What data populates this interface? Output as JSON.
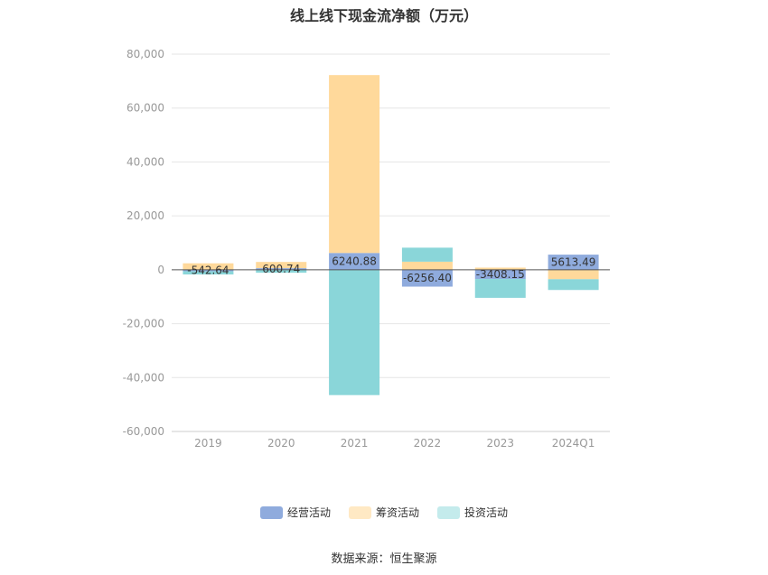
{
  "chart_data": {
    "type": "bar",
    "stacked": true,
    "title": "线上线下现金流净额（万元）",
    "categories": [
      "2019",
      "2020",
      "2021",
      "2022",
      "2023",
      "2024Q1"
    ],
    "series": [
      {
        "name": "经营活动",
        "color": "#8fabdd",
        "values": [
          -542.64,
          600.74,
          6240.88,
          -6256.4,
          -3408.15,
          5613.49
        ]
      },
      {
        "name": "筹资活动",
        "color": "#ffd99b",
        "values": [
          2400,
          2300,
          66000,
          3000,
          800,
          -3500
        ]
      },
      {
        "name": "投资活动",
        "color": "#8ad6d9",
        "values": [
          -1200,
          -1100,
          -46500,
          5200,
          -7000,
          -4000
        ]
      }
    ],
    "data_labels": [
      "-542.64",
      "600.74",
      "6240.88",
      "-6256.40",
      "-3408.15",
      "5613.49"
    ],
    "ylim": [
      -60000,
      80000
    ],
    "yticks": [
      80000,
      60000,
      40000,
      20000,
      0,
      -20000,
      -40000,
      -60000
    ],
    "ytick_labels": [
      "80,000",
      "60,000",
      "40,000",
      "20,000",
      "0",
      "-20,000",
      "-40,000",
      "-60,000"
    ],
    "grid": true,
    "legend_position": "bottom"
  },
  "source_text": "数据来源：恒生聚源"
}
